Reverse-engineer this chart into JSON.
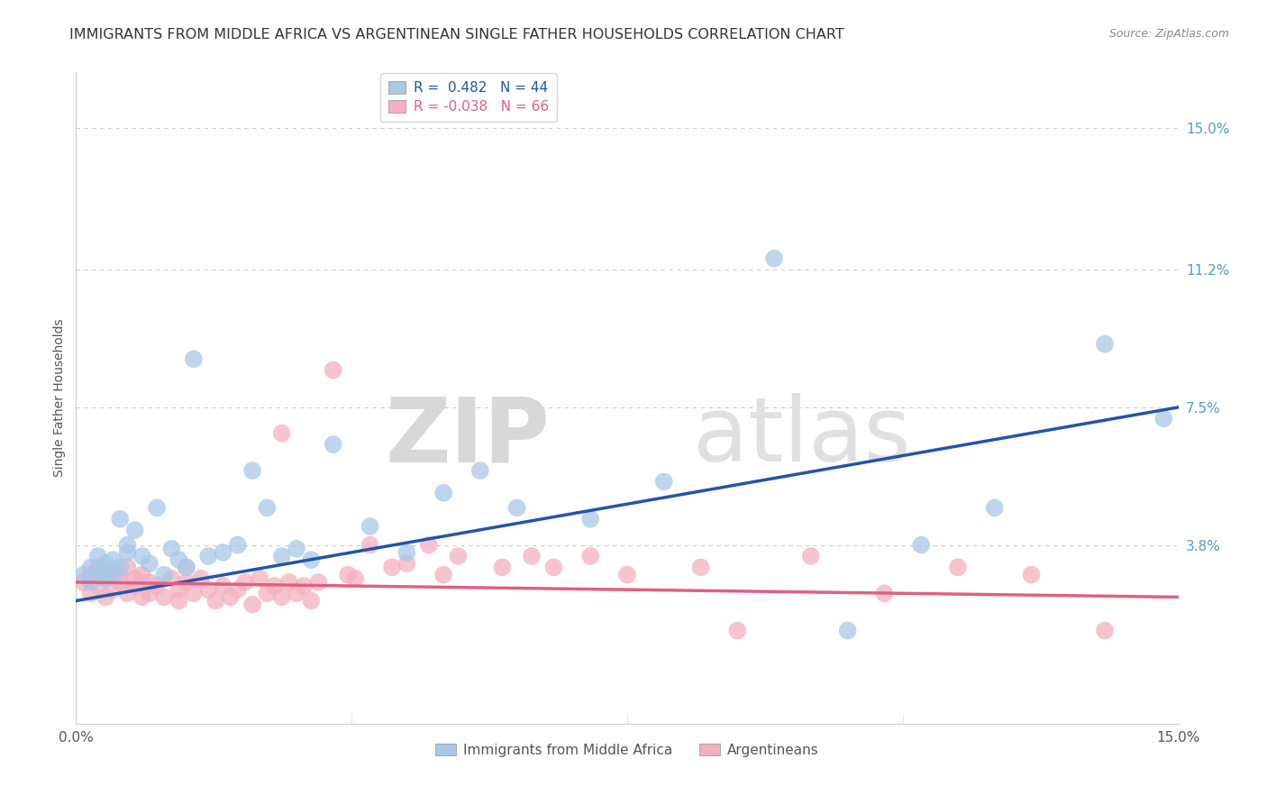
{
  "title": "IMMIGRANTS FROM MIDDLE AFRICA VS ARGENTINEAN SINGLE FATHER HOUSEHOLDS CORRELATION CHART",
  "source": "Source: ZipAtlas.com",
  "ylabel": "Single Father Households",
  "xlim": [
    0.0,
    15.0
  ],
  "ylim": [
    -1.0,
    16.5
  ],
  "yticks": [
    0.0,
    3.8,
    7.5,
    11.2,
    15.0
  ],
  "blue_R": 0.482,
  "blue_N": 44,
  "pink_R": -0.038,
  "pink_N": 66,
  "blue_color": "#a8c8e8",
  "pink_color": "#f4b0c0",
  "blue_line_color": "#2255aa",
  "pink_line_color": "#e06080",
  "watermark_zip": "ZIP",
  "watermark_atlas": "atlas",
  "legend_label_blue": "Immigrants from Middle Africa",
  "legend_label_pink": "Argentineans",
  "blue_scatter_x": [
    0.1,
    0.2,
    0.2,
    0.3,
    0.3,
    0.4,
    0.4,
    0.5,
    0.5,
    0.6,
    0.6,
    0.7,
    0.7,
    0.8,
    0.9,
    1.0,
    1.1,
    1.2,
    1.3,
    1.4,
    1.5,
    1.6,
    1.8,
    2.0,
    2.2,
    2.4,
    2.6,
    2.8,
    3.0,
    3.2,
    3.5,
    4.0,
    4.5,
    5.0,
    5.5,
    6.0,
    7.0,
    8.0,
    9.5,
    10.5,
    11.5,
    12.5,
    14.0,
    14.8
  ],
  "blue_scatter_y": [
    3.0,
    2.8,
    3.2,
    3.5,
    3.1,
    3.3,
    2.9,
    3.4,
    3.0,
    4.5,
    3.2,
    3.6,
    3.8,
    4.2,
    3.5,
    3.3,
    4.8,
    3.0,
    3.7,
    3.4,
    3.2,
    8.8,
    3.5,
    3.6,
    3.8,
    5.8,
    4.8,
    3.5,
    3.7,
    3.4,
    6.5,
    4.3,
    3.6,
    5.2,
    5.8,
    4.8,
    4.5,
    5.5,
    11.5,
    1.5,
    3.8,
    4.8,
    9.2,
    7.2
  ],
  "pink_scatter_x": [
    0.1,
    0.2,
    0.2,
    0.3,
    0.3,
    0.4,
    0.4,
    0.5,
    0.5,
    0.6,
    0.6,
    0.7,
    0.7,
    0.8,
    0.8,
    0.9,
    0.9,
    1.0,
    1.0,
    1.1,
    1.2,
    1.3,
    1.4,
    1.4,
    1.5,
    1.5,
    1.6,
    1.7,
    1.8,
    1.9,
    2.0,
    2.1,
    2.2,
    2.3,
    2.4,
    2.5,
    2.6,
    2.7,
    2.8,
    2.9,
    3.0,
    3.1,
    3.2,
    3.3,
    3.5,
    3.7,
    4.0,
    4.3,
    4.8,
    5.2,
    5.8,
    6.2,
    7.0,
    7.5,
    8.5,
    9.0,
    10.0,
    11.0,
    12.0,
    13.0,
    14.0,
    2.8,
    3.8,
    4.5,
    5.0,
    6.5
  ],
  "pink_scatter_y": [
    2.8,
    3.0,
    2.5,
    3.2,
    2.7,
    2.9,
    2.4,
    3.1,
    2.6,
    2.8,
    3.0,
    2.5,
    3.2,
    2.7,
    2.9,
    2.4,
    3.0,
    2.8,
    2.5,
    2.7,
    2.4,
    2.9,
    2.6,
    2.3,
    2.8,
    3.2,
    2.5,
    2.9,
    2.6,
    2.3,
    2.7,
    2.4,
    2.6,
    2.8,
    2.2,
    2.9,
    2.5,
    2.7,
    2.4,
    2.8,
    2.5,
    2.7,
    2.3,
    2.8,
    8.5,
    3.0,
    3.8,
    3.2,
    3.8,
    3.5,
    3.2,
    3.5,
    3.5,
    3.0,
    3.2,
    1.5,
    3.5,
    2.5,
    3.2,
    3.0,
    1.5,
    6.8,
    2.9,
    3.3,
    3.0,
    3.2
  ],
  "background_color": "#ffffff",
  "grid_color": "#cccccc",
  "title_fontsize": 11.5,
  "axis_label_fontsize": 10,
  "tick_fontsize": 11,
  "source_fontsize": 9,
  "legend_fontsize": 11
}
